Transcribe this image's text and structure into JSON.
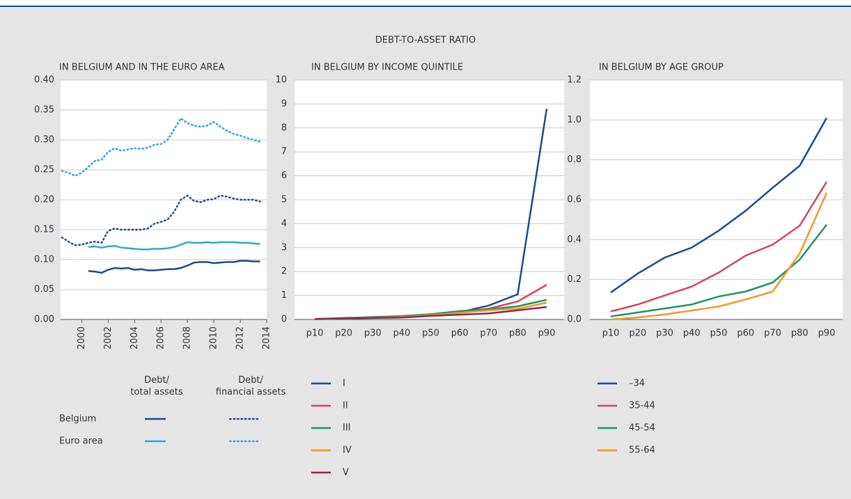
{
  "title": "DEBT-TO-ASSET RATIO",
  "chart_data": [
    {
      "type": "line",
      "subtitle": "IN BELGIUM AND IN THE EURO AREA",
      "x": [
        1998.5,
        1999,
        1999.5,
        2000,
        2000.5,
        2001,
        2001.5,
        2002,
        2002.5,
        2003,
        2003.5,
        2004,
        2004.5,
        2005,
        2005.5,
        2006,
        2006.5,
        2007,
        2007.5,
        2008,
        2008.5,
        2009,
        2009.5,
        2010,
        2010.5,
        2011,
        2011.5,
        2012,
        2012.5,
        2013,
        2013.5
      ],
      "xlim": [
        1998.4,
        2014
      ],
      "xticks": [
        2000,
        2002,
        2004,
        2006,
        2008,
        2010,
        2012,
        2014
      ],
      "ylim": [
        0,
        0.4
      ],
      "yticks": [
        {
          "value": 0,
          "label": "0.00"
        },
        {
          "value": 0.05,
          "label": "0.05"
        },
        {
          "value": 0.1,
          "label": "0.10"
        },
        {
          "value": 0.15,
          "label": "0.15"
        },
        {
          "value": 0.2,
          "label": "0.20"
        },
        {
          "value": 0.25,
          "label": "0.25"
        },
        {
          "value": 0.3,
          "label": "0.30"
        },
        {
          "value": 0.35,
          "label": "0.35"
        },
        {
          "value": 0.4,
          "label": "0.40"
        }
      ],
      "grid": true,
      "legend": {
        "rows": [
          "Belgium",
          "Euro area"
        ],
        "columns": [
          "Debt/\ntotal assets",
          "Debt/\nfinancial assets"
        ]
      },
      "series": [
        {
          "color": "#1c4b82",
          "dash": false,
          "values": [
            null,
            null,
            null,
            null,
            0.081,
            0.08,
            0.078,
            0.083,
            0.086,
            0.085,
            0.086,
            0.083,
            0.084,
            0.082,
            0.082,
            0.083,
            0.084,
            0.084,
            0.086,
            0.09,
            0.095,
            0.096,
            0.096,
            0.094,
            0.095,
            0.096,
            0.096,
            0.098,
            0.098,
            0.097,
            0.097
          ]
        },
        {
          "color": "#1c4b82",
          "dash": true,
          "values": [
            0.137,
            0.13,
            0.124,
            0.125,
            0.128,
            0.13,
            0.128,
            0.148,
            0.152,
            0.15,
            0.15,
            0.15,
            0.15,
            0.152,
            0.16,
            0.163,
            0.167,
            0.18,
            0.2,
            0.207,
            0.198,
            0.196,
            0.2,
            0.201,
            0.207,
            0.205,
            0.202,
            0.2,
            0.2,
            0.2,
            0.197
          ]
        },
        {
          "color": "#2aa7dc",
          "dash": false,
          "values": [
            null,
            null,
            null,
            null,
            0.121,
            0.122,
            0.12,
            0.122,
            0.123,
            0.12,
            0.119,
            0.118,
            0.117,
            0.117,
            0.118,
            0.118,
            0.119,
            0.121,
            0.125,
            0.129,
            0.128,
            0.128,
            0.129,
            0.128,
            0.129,
            0.129,
            0.129,
            0.128,
            0.128,
            0.127,
            0.126
          ]
        },
        {
          "color": "#2aa7dc",
          "dash": true,
          "values": [
            0.248,
            0.245,
            0.24,
            0.245,
            0.255,
            0.265,
            0.267,
            0.28,
            0.286,
            0.282,
            0.284,
            0.286,
            0.285,
            0.287,
            0.292,
            0.293,
            0.3,
            0.318,
            0.336,
            0.328,
            0.324,
            0.322,
            0.324,
            0.33,
            0.322,
            0.315,
            0.31,
            0.307,
            0.303,
            0.3,
            0.297
          ]
        }
      ]
    },
    {
      "type": "line",
      "subtitle": "IN BELGIUM BY INCOME QUINTILE",
      "categories": [
        "p10",
        "p20",
        "p30",
        "p40",
        "p50",
        "p60",
        "p70",
        "p80",
        "p90"
      ],
      "ylim": [
        0,
        10
      ],
      "yticks": [
        0,
        1,
        2,
        3,
        4,
        5,
        6,
        7,
        8,
        9,
        10
      ],
      "grid": true,
      "series": [
        {
          "name": "I",
          "color": "#1c4b82",
          "values": [
            0.02,
            0.05,
            0.07,
            0.1,
            0.18,
            0.3,
            0.58,
            1.05,
            8.8
          ]
        },
        {
          "name": "II",
          "color": "#d9435a",
          "values": [
            0.02,
            0.05,
            0.07,
            0.1,
            0.15,
            0.3,
            0.45,
            0.75,
            1.45
          ]
        },
        {
          "name": "III",
          "color": "#1e9366",
          "values": [
            0.02,
            0.06,
            0.1,
            0.14,
            0.22,
            0.35,
            0.42,
            0.55,
            0.82
          ]
        },
        {
          "name": "IV",
          "color": "#f29a1d",
          "values": [
            0.02,
            0.04,
            0.07,
            0.1,
            0.18,
            0.28,
            0.38,
            0.45,
            0.7
          ]
        },
        {
          "name": "V",
          "color": "#8b2553",
          "values": [
            0.01,
            0.04,
            0.06,
            0.08,
            0.15,
            0.2,
            0.25,
            0.38,
            0.52
          ]
        }
      ]
    },
    {
      "type": "line",
      "subtitle": "IN BELGIUM BY AGE GROUP",
      "categories": [
        "p10",
        "p20",
        "p30",
        "p40",
        "p50",
        "p60",
        "p70",
        "p80",
        "p90"
      ],
      "ylim": [
        0,
        1.2
      ],
      "yticks": [
        {
          "value": 0,
          "label": "0.0"
        },
        0.2,
        0.4,
        0.6,
        0.8,
        {
          "value": 1,
          "label": "1.0"
        },
        1.2
      ],
      "grid": true,
      "series": [
        {
          "name": "–34",
          "color": "#1c4b82",
          "values": [
            0.135,
            0.23,
            0.31,
            0.36,
            0.445,
            0.545,
            0.66,
            0.77,
            1.01
          ]
        },
        {
          "name": "35-44",
          "color": "#d9435a",
          "values": [
            0.04,
            0.075,
            0.12,
            0.165,
            0.235,
            0.32,
            0.375,
            0.47,
            0.69
          ]
        },
        {
          "name": "45-54",
          "color": "#1e9366",
          "values": [
            0.015,
            0.035,
            0.055,
            0.075,
            0.115,
            0.14,
            0.185,
            0.3,
            0.475
          ]
        },
        {
          "name": "55-64",
          "color": "#f29a1d",
          "values": [
            0.0,
            0.01,
            0.025,
            0.045,
            0.065,
            0.1,
            0.14,
            0.33,
            0.635
          ]
        }
      ]
    }
  ]
}
